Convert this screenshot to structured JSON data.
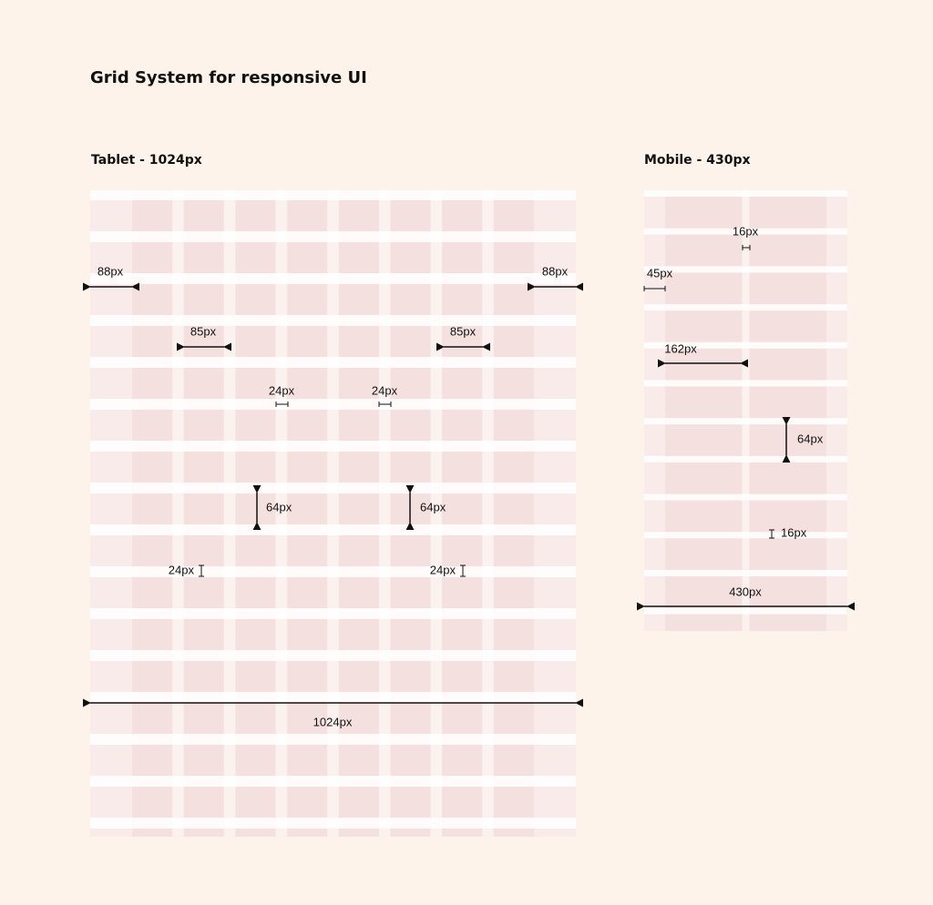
{
  "title": "Grid System for responsive UI",
  "tablet": {
    "label": "Tablet - 1024px",
    "annotations": [
      "88px",
      "88px",
      "85px",
      "85px",
      "24px",
      "24px",
      "64px",
      "64px",
      "24px",
      "24px",
      "1024px"
    ]
  },
  "mobile": {
    "label": "Mobile - 430px",
    "annotations": [
      "16px",
      "45px",
      "162px",
      "64px",
      "16px",
      "430px"
    ]
  }
}
